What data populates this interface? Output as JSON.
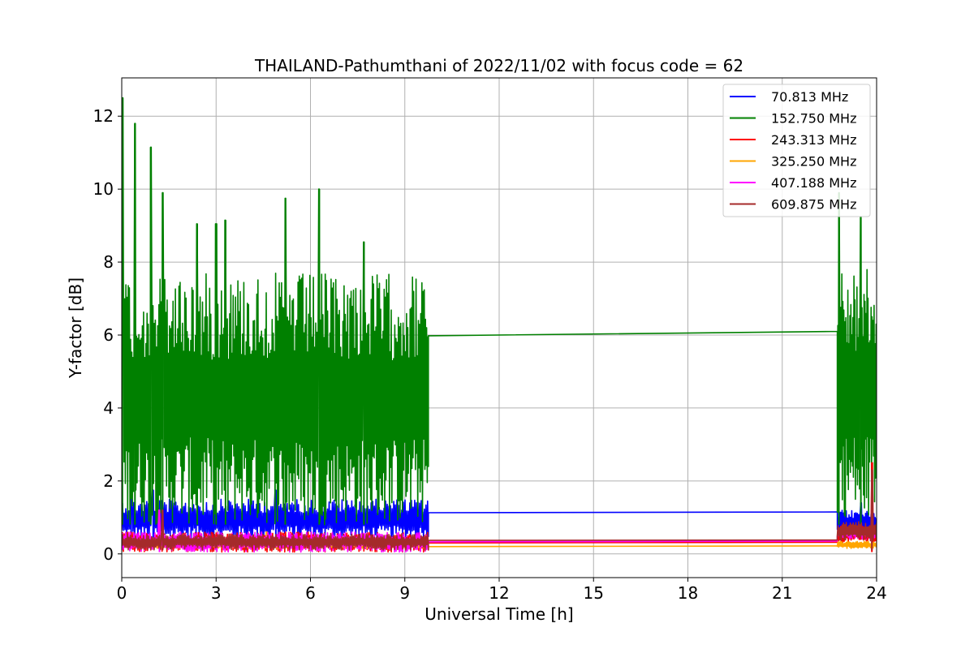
{
  "chart_data": {
    "type": "line",
    "title": "THAILAND-Pathumthani of 2022/11/02 with focus code = 62",
    "xlabel": "Universal Time [h]",
    "ylabel": "Y-factor [dB]",
    "xlim": [
      0,
      24
    ],
    "ylim": [
      -0.65,
      13.05
    ],
    "xticks": [
      0,
      3,
      6,
      9,
      12,
      15,
      18,
      21,
      24
    ],
    "yticks": [
      0,
      2,
      4,
      6,
      8,
      10,
      12
    ],
    "grid": true,
    "legend_position": "top-right",
    "gap_hours": [
      9.75,
      22.75
    ],
    "series": [
      {
        "name": " 70.813 MHz",
        "color": "#0000ff",
        "typical_range_hours_0_9_75": [
          0.4,
          1.5
        ],
        "typical_range_hours_22_75_24": [
          0.5,
          1.2
        ],
        "bridge_values": [
          1.13,
          1.15
        ],
        "peaks": [
          [
            0.3,
            1.9
          ],
          [
            1.0,
            1.75
          ],
          [
            4.9,
            1.75
          ],
          [
            23.5,
            1.4
          ]
        ]
      },
      {
        "name": "152.750 MHz",
        "color": "#008000",
        "typical_range_hours_0_9_75": [
          0.8,
          7.7
        ],
        "typical_range_hours_22_75_24": [
          1.0,
          7.8
        ],
        "bridge_values": [
          5.98,
          6.1
        ],
        "peaks": [
          [
            0.02,
            12.5
          ],
          [
            0.42,
            11.8
          ],
          [
            0.92,
            11.15
          ],
          [
            1.3,
            9.9
          ],
          [
            2.4,
            9.05
          ],
          [
            3.0,
            9.05
          ],
          [
            3.3,
            9.15
          ],
          [
            5.2,
            9.75
          ],
          [
            6.28,
            10.0
          ],
          [
            7.7,
            8.55
          ],
          [
            22.8,
            9.9
          ],
          [
            23.5,
            9.25
          ]
        ]
      },
      {
        "name": "243.313 MHz",
        "color": "#ff0000",
        "typical_range_hours_0_9_75": [
          0.05,
          0.6
        ],
        "typical_range_hours_22_75_24": [
          0.3,
          0.8
        ],
        "bridge_values": [
          0.3,
          0.32
        ],
        "peaks": [
          [
            23.85,
            2.5
          ]
        ]
      },
      {
        "name": "325.250 MHz",
        "color": "#ffa500",
        "typical_range_hours_0_9_75": [
          0.15,
          0.35
        ],
        "typical_range_hours_22_75_24": [
          0.15,
          0.35
        ],
        "bridge_values": [
          0.2,
          0.22
        ],
        "peaks": [
          [
            4.6,
            0.6
          ]
        ]
      },
      {
        "name": "407.188 MHz",
        "color": "#ff00ff",
        "typical_range_hours_0_9_75": [
          0.05,
          0.6
        ],
        "typical_range_hours_22_75_24": [
          0.4,
          0.7
        ],
        "bridge_values": [
          0.33,
          0.35
        ],
        "peaks": [
          [
            1.2,
            1.2
          ]
        ]
      },
      {
        "name": "609.875 MHz",
        "color": "#a52a2a",
        "typical_range_hours_0_9_75": [
          0.1,
          0.55
        ],
        "typical_range_hours_22_75_24": [
          0.35,
          0.9
        ],
        "bridge_values": [
          0.37,
          0.38
        ],
        "peaks": [
          [
            1.3,
            1.2
          ],
          [
            23.85,
            2.3
          ]
        ]
      }
    ]
  }
}
